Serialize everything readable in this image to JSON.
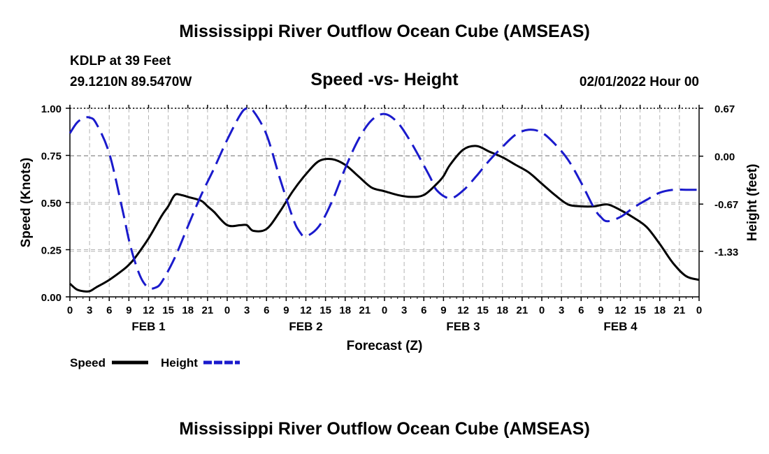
{
  "header": {
    "title": "Mississippi River Outflow Ocean Cube (AMSEAS)",
    "station": "KDLP at 39 Feet",
    "location": "29.1210N  89.5470W",
    "subtitle": "Speed -vs- Height",
    "datetime": "02/01/2022 Hour 00"
  },
  "footer": {
    "title": "Mississippi River Outflow Ocean Cube (AMSEAS)"
  },
  "colors": {
    "speed": "#000000",
    "height": "#1a1acc",
    "grid": "#b3b3b3"
  },
  "chart_data": {
    "type": "line",
    "title": "Speed -vs- Height",
    "xlabel": "Forecast (Z)",
    "ylabel": "Speed (Knots)",
    "y2label": "Height (feet)",
    "xlim": [
      0,
      96
    ],
    "ylim": [
      0,
      1
    ],
    "y2lim": [
      -1.967,
      0.67
    ],
    "x_tick_hours": [
      0,
      3,
      6,
      9,
      12,
      15,
      18,
      21,
      24,
      27,
      30,
      33,
      36,
      39,
      42,
      45,
      48,
      51,
      54,
      57,
      60,
      63,
      66,
      69,
      72,
      75,
      78,
      81,
      84,
      87,
      90,
      93,
      96
    ],
    "x_tick_labels": [
      "0",
      "3",
      "6",
      "9",
      "12",
      "15",
      "18",
      "21",
      "0",
      "3",
      "6",
      "9",
      "12",
      "15",
      "18",
      "21",
      "0",
      "3",
      "6",
      "9",
      "12",
      "15",
      "18",
      "21",
      "0",
      "3",
      "6",
      "9",
      "12",
      "15",
      "18",
      "21",
      "0"
    ],
    "day_labels": [
      {
        "label": "FEB 1",
        "hour": 12
      },
      {
        "label": "FEB 2",
        "hour": 36
      },
      {
        "label": "FEB 3",
        "hour": 60
      },
      {
        "label": "FEB 4",
        "hour": 84
      }
    ],
    "y_ticks": [
      0,
      0.25,
      0.5,
      0.75,
      1.0
    ],
    "y_tick_labels": [
      "0.00",
      "0.25",
      "0.50",
      "0.75",
      "1.00"
    ],
    "y2_ticks": [
      0.67,
      0.0,
      -0.67,
      -1.33
    ],
    "y2_tick_labels": [
      "0.67",
      "0.00",
      "-0.67",
      "-1.33"
    ],
    "legend": [
      {
        "name": "Speed",
        "style": "solid"
      },
      {
        "name": "Height",
        "style": "dashed"
      }
    ],
    "series": [
      {
        "name": "Speed",
        "axis": "left",
        "x": [
          0,
          1,
          2,
          3,
          4,
          6,
          8,
          9,
          10,
          12,
          14,
          15,
          16,
          17,
          18,
          20,
          21,
          22,
          24,
          26,
          27,
          28,
          30,
          32,
          34,
          36,
          38,
          40,
          42,
          44,
          46,
          48,
          50,
          52,
          54,
          56,
          57,
          58,
          60,
          62,
          64,
          66,
          68,
          70,
          72,
          74,
          76,
          78,
          80,
          82,
          84,
          86,
          88,
          90,
          92,
          94,
          96
        ],
        "values": [
          0.07,
          0.04,
          0.03,
          0.03,
          0.05,
          0.09,
          0.14,
          0.17,
          0.21,
          0.31,
          0.43,
          0.48,
          0.54,
          0.54,
          0.53,
          0.51,
          0.48,
          0.45,
          0.38,
          0.38,
          0.38,
          0.35,
          0.36,
          0.45,
          0.56,
          0.65,
          0.72,
          0.73,
          0.7,
          0.64,
          0.58,
          0.56,
          0.54,
          0.53,
          0.54,
          0.6,
          0.64,
          0.7,
          0.78,
          0.8,
          0.77,
          0.74,
          0.7,
          0.66,
          0.6,
          0.54,
          0.49,
          0.48,
          0.48,
          0.49,
          0.46,
          0.42,
          0.37,
          0.28,
          0.18,
          0.11,
          0.09
        ]
      },
      {
        "name": "Height",
        "axis": "right",
        "x": [
          0,
          1,
          2,
          3,
          4,
          6,
          8,
          9,
          10,
          11,
          12,
          13,
          14,
          16,
          18,
          20,
          22,
          24,
          26,
          27,
          28,
          30,
          32,
          34,
          35,
          36,
          38,
          40,
          42,
          44,
          46,
          48,
          50,
          52,
          54,
          55,
          56,
          58,
          60,
          62,
          64,
          66,
          68,
          70,
          72,
          74,
          76,
          78,
          80,
          81,
          82,
          84,
          86,
          88,
          90,
          92,
          94,
          96
        ],
        "values": [
          0.32,
          0.46,
          0.53,
          0.54,
          0.46,
          0.04,
          -0.74,
          -1.17,
          -1.5,
          -1.73,
          -1.84,
          -1.84,
          -1.76,
          -1.42,
          -0.98,
          -0.55,
          -0.17,
          0.23,
          0.58,
          0.67,
          0.63,
          0.3,
          -0.3,
          -0.86,
          -1.05,
          -1.12,
          -0.98,
          -0.63,
          -0.17,
          0.23,
          0.5,
          0.59,
          0.47,
          0.2,
          -0.13,
          -0.3,
          -0.48,
          -0.59,
          -0.48,
          -0.28,
          -0.06,
          0.13,
          0.3,
          0.37,
          0.33,
          0.17,
          -0.05,
          -0.37,
          -0.73,
          -0.85,
          -0.91,
          -0.85,
          -0.72,
          -0.61,
          -0.51,
          -0.47,
          -0.47,
          -0.47
        ]
      }
    ]
  }
}
